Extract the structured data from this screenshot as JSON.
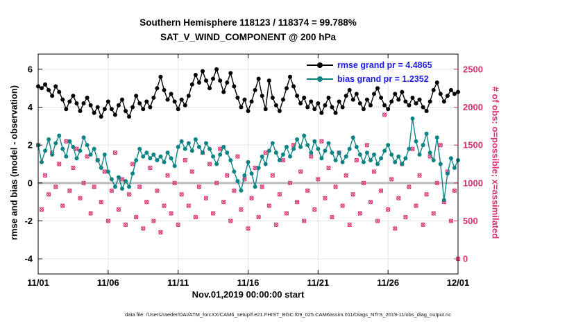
{
  "footer": "data file: /Users/raeder/DAI/ATM_forcXX/CAM6_setup/f.e21.FHIST_BGC.f09_025.CAM6assim.011/Diags_NTrS_2019-11/obs_diag_output.nc",
  "colors": {
    "rmse": "#000000",
    "bias": "#0e8383",
    "obs": "#d9306e",
    "zero_line": "#bbbbbb",
    "grid": "#e3e3e3",
    "legend_text": "#1a1ae6"
  },
  "chart_data": {
    "type": "line",
    "title": "Southern Hemisphere 118123 / 118374 = 99.788%",
    "subtitle": "SAT_V_WIND_COMPONENT @ 200 hPa",
    "xlabel": "Nov.01,2019 00:00:00 start",
    "ylabel_left": "rmse and bias (model - observation)",
    "ylabel_right": "# of obs: o=possible; x=assimilated",
    "x_unit": "days since Nov 1, 2019 00:00",
    "x_step_days": 0.25,
    "xlim": [
      0,
      30
    ],
    "xticks": [
      0,
      5,
      10,
      15,
      20,
      25,
      30
    ],
    "xtick_labels": [
      "11/01",
      "11/06",
      "11/11",
      "11/16",
      "11/21",
      "11/26",
      "12/01"
    ],
    "ylim_left": [
      -4.8,
      6.8
    ],
    "yticks_left": [
      -4,
      -2,
      0,
      2,
      4,
      6
    ],
    "ylim_right": [
      -200,
      2700
    ],
    "yticks_right": [
      0,
      500,
      1000,
      1500,
      2000,
      2500
    ],
    "legend": [
      {
        "series": "rmse",
        "label": "rmse grand pr = 4.4865"
      },
      {
        "series": "bias",
        "label": "bias grand pr = 1.2352"
      }
    ],
    "series": [
      {
        "name": "rmse",
        "axis": "left",
        "marker": "filled-circle",
        "values": [
          5.1,
          5.0,
          5.2,
          4.9,
          4.6,
          5.1,
          4.8,
          4.4,
          3.9,
          4.3,
          4.6,
          4.2,
          3.8,
          4.2,
          4.5,
          4.1,
          3.7,
          4.0,
          3.5,
          3.9,
          4.3,
          3.9,
          3.6,
          4.1,
          4.4,
          3.8,
          3.5,
          4.0,
          4.6,
          4.2,
          3.9,
          4.3,
          4.0,
          4.5,
          5.0,
          5.6,
          4.9,
          4.4,
          4.7,
          4.3,
          3.9,
          4.4,
          4.1,
          4.6,
          5.2,
          5.7,
          5.3,
          5.9,
          5.4,
          5.0,
          5.5,
          6.0,
          5.4,
          4.8,
          5.3,
          5.8,
          5.1,
          4.5,
          4.0,
          4.4,
          3.8,
          4.3,
          4.9,
          5.5,
          4.6,
          3.9,
          5.4,
          4.5,
          4.1,
          3.8,
          4.4,
          5.0,
          5.6,
          5.1,
          4.6,
          4.2,
          4.5,
          4.0,
          4.3,
          3.9,
          4.2,
          3.7,
          4.1,
          4.5,
          4.0,
          3.7,
          4.3,
          4.0,
          4.6,
          4.9,
          4.4,
          4.7,
          4.2,
          3.9,
          4.4,
          4.1,
          4.7,
          5.0,
          4.5,
          4.1,
          3.9,
          4.3,
          4.7,
          4.4,
          4.8,
          4.3,
          4.1,
          4.5,
          4.2,
          4.4,
          4.0,
          3.8,
          4.3,
          4.9,
          5.3,
          4.7,
          4.3,
          4.6,
          4.9,
          4.7,
          4.8
        ]
      },
      {
        "name": "bias",
        "axis": "left",
        "marker": "filled-circle",
        "values": [
          2.0,
          1.1,
          1.7,
          2.3,
          1.5,
          2.1,
          2.5,
          1.8,
          1.4,
          2.2,
          1.9,
          1.3,
          1.7,
          2.4,
          2.0,
          1.5,
          1.8,
          1.2,
          0.8,
          1.5,
          0.6,
          0.2,
          -0.2,
          0.3,
          -0.3,
          0.1,
          -0.2,
          0.5,
          1.2,
          1.8,
          1.4,
          1.6,
          1.3,
          1.5,
          1.2,
          1.4,
          1.1,
          1.6,
          1.3,
          0.9,
          1.9,
          2.2,
          1.8,
          2.1,
          1.7,
          2.3,
          1.9,
          1.6,
          2.1,
          1.8,
          1.4,
          1.0,
          1.5,
          1.9,
          1.6,
          1.2,
          0.6,
          0.1,
          -0.4,
          0.4,
          1.1,
          0.5,
          -0.2,
          0.8,
          1.4,
          1.0,
          1.7,
          2.1,
          1.6,
          1.2,
          1.5,
          1.9,
          1.4,
          1.8,
          2.3,
          1.9,
          2.5,
          2.0,
          1.6,
          2.2,
          1.8,
          1.3,
          1.7,
          2.1,
          1.6,
          1.2,
          1.6,
          1.1,
          1.4,
          1.8,
          2.4,
          1.9,
          1.5,
          1.1,
          1.6,
          1.2,
          1.5,
          1.0,
          1.3,
          1.7,
          2.0,
          1.5,
          1.1,
          1.4,
          1.0,
          1.3,
          1.8,
          3.4,
          2.2,
          1.5,
          2.0,
          2.6,
          1.6,
          1.2,
          2.4,
          1.0,
          -0.9,
          0.5,
          1.3,
          0.8,
          1.2
        ]
      },
      {
        "name": "obs_possible",
        "axis": "right",
        "marker": "circle",
        "values": [
          1500,
          650,
          1100,
          850,
          1400,
          950,
          1250,
          700,
          1550,
          900,
          1200,
          1450,
          800,
          1000,
          1350,
          600,
          950,
          1300,
          750,
          1150,
          500,
          900,
          1400,
          650,
          1050,
          450,
          850,
          1250,
          550,
          950,
          400,
          750,
          1200,
          500,
          900,
          350,
          700,
          1100,
          600,
          1000,
          450,
          850,
          1300,
          700,
          1150,
          550,
          950,
          1400,
          800,
          1250,
          600,
          1000,
          1450,
          750,
          1100,
          500,
          900,
          1350,
          650,
          1050,
          400,
          800,
          1200,
          550,
          950,
          1400,
          700,
          1100,
          450,
          850,
          1300,
          600,
          1000,
          1500,
          750,
          1150,
          500,
          900,
          1350,
          650,
          1050,
          1550,
          800,
          1200,
          550,
          950,
          1400,
          700,
          1100,
          450,
          850,
          1300,
          600,
          1000,
          1500,
          750,
          1150,
          500,
          900,
          1900,
          650,
          1050,
          400,
          800,
          1250,
          550,
          950,
          1450,
          700,
          1100,
          450,
          850,
          1350,
          600,
          1000,
          1500,
          750,
          1150,
          500,
          900,
          0
        ]
      },
      {
        "name": "obs_assimilated",
        "axis": "right",
        "marker": "x",
        "values": [
          1500,
          650,
          1100,
          850,
          1400,
          950,
          1250,
          700,
          1550,
          900,
          1200,
          1450,
          800,
          1000,
          1350,
          600,
          950,
          1300,
          750,
          1150,
          500,
          900,
          1400,
          650,
          1050,
          450,
          850,
          1250,
          550,
          950,
          400,
          750,
          1200,
          500,
          900,
          350,
          700,
          1100,
          600,
          1000,
          450,
          850,
          1300,
          700,
          1150,
          550,
          950,
          1400,
          800,
          1250,
          600,
          1000,
          1450,
          750,
          1100,
          500,
          900,
          1350,
          650,
          1050,
          400,
          800,
          1200,
          550,
          950,
          1400,
          700,
          1100,
          450,
          850,
          1300,
          600,
          1000,
          1500,
          750,
          1150,
          500,
          900,
          1350,
          650,
          1050,
          1550,
          800,
          1200,
          550,
          950,
          1400,
          700,
          1100,
          450,
          850,
          1300,
          600,
          1000,
          1500,
          750,
          1150,
          500,
          900,
          1900,
          650,
          1050,
          400,
          800,
          1250,
          550,
          950,
          1450,
          700,
          1100,
          450,
          850,
          1350,
          600,
          1000,
          1500,
          750,
          1150,
          500,
          900,
          0
        ]
      }
    ]
  }
}
